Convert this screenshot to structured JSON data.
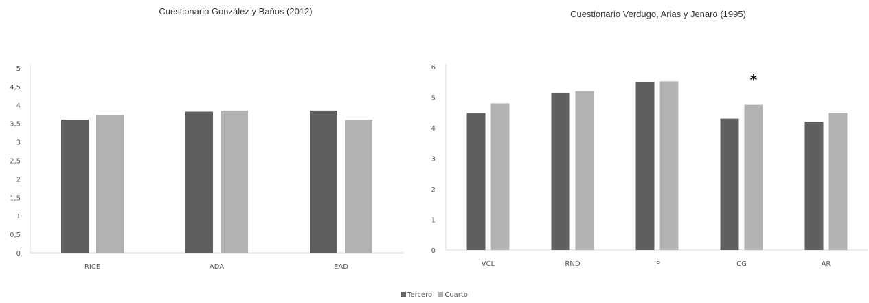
{
  "chart_data": [
    {
      "type": "bar",
      "title": "Cuestionario González y Baños (2012)",
      "categories": [
        "RICE",
        "ADA",
        "EAD"
      ],
      "series": [
        {
          "name": "Tercero",
          "values": [
            3.6,
            3.82,
            3.85
          ],
          "color": "#5f5f5f"
        },
        {
          "name": "Cuarto",
          "values": [
            3.73,
            3.85,
            3.6
          ],
          "color": "#b2b2b2"
        }
      ],
      "ylim": [
        0,
        5
      ],
      "yticks": [
        "0",
        "0,5",
        "1",
        "1,5",
        "2",
        "2,5",
        "3",
        "3,5",
        "4",
        "4,5",
        "5"
      ],
      "annotations": [],
      "grid": false,
      "legend": "bottom-center"
    },
    {
      "type": "bar",
      "title": "Cuestionario Verdugo, Arias y Jenaro (1995)",
      "categories": [
        "VCL",
        "RND",
        "IP",
        "CG",
        "AR"
      ],
      "series": [
        {
          "name": "Tercero",
          "values": [
            4.48,
            5.13,
            5.5,
            4.3,
            4.2
          ],
          "color": "#5f5f5f"
        },
        {
          "name": "Cuarto",
          "values": [
            4.8,
            5.2,
            5.52,
            4.75,
            4.48
          ],
          "color": "#b2b2b2"
        }
      ],
      "ylim": [
        0,
        6
      ],
      "yticks": [
        "0",
        "1",
        "2",
        "3",
        "4",
        "5",
        "6"
      ],
      "annotations": [
        {
          "text": "*",
          "category": "CG",
          "value": 5.6
        }
      ],
      "grid": false,
      "legend": "bottom-center"
    }
  ],
  "legend": [
    {
      "label": "Tercero",
      "color": "#5f5f5f"
    },
    {
      "label": "Cuarto",
      "color": "#b2b2b2"
    }
  ]
}
